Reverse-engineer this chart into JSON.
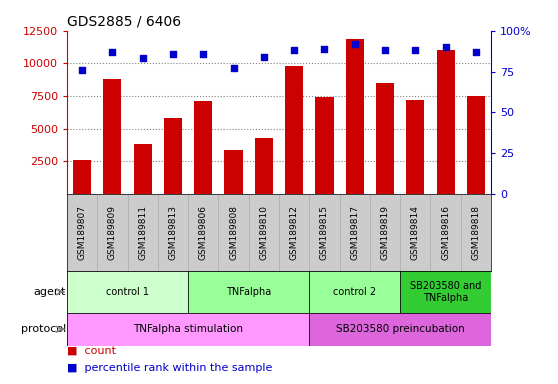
{
  "title": "GDS2885 / 6406",
  "samples": [
    "GSM189807",
    "GSM189809",
    "GSM189811",
    "GSM189813",
    "GSM189806",
    "GSM189808",
    "GSM189810",
    "GSM189812",
    "GSM189815",
    "GSM189817",
    "GSM189819",
    "GSM189814",
    "GSM189816",
    "GSM189818"
  ],
  "counts": [
    2600,
    8800,
    3800,
    5800,
    7100,
    3400,
    4300,
    9800,
    7400,
    11900,
    8500,
    7200,
    11000,
    7500
  ],
  "percentile_ranks": [
    76,
    87,
    83,
    86,
    86,
    77,
    84,
    88,
    89,
    92,
    88,
    88,
    90,
    87
  ],
  "bar_color": "#cc0000",
  "dot_color": "#0000cc",
  "ylim_left": [
    0,
    12500
  ],
  "ylim_right": [
    0,
    100
  ],
  "yticks_left": [
    2500,
    5000,
    7500,
    10000,
    12500
  ],
  "yticks_right": [
    0,
    25,
    50,
    75,
    100
  ],
  "dotted_lines": [
    10000,
    7500,
    5000,
    2500
  ],
  "agent_groups": [
    {
      "label": "control 1",
      "start": 0,
      "end": 4,
      "color": "#ccffcc"
    },
    {
      "label": "TNFalpha",
      "start": 4,
      "end": 8,
      "color": "#99ff99"
    },
    {
      "label": "control 2",
      "start": 8,
      "end": 11,
      "color": "#99ff99"
    },
    {
      "label": "SB203580 and\nTNFalpha",
      "start": 11,
      "end": 14,
      "color": "#33cc33"
    }
  ],
  "protocol_groups": [
    {
      "label": "TNFalpha stimulation",
      "start": 0,
      "end": 8,
      "color": "#ff99ff"
    },
    {
      "label": "SB203580 preincubation",
      "start": 8,
      "end": 14,
      "color": "#dd66dd"
    }
  ],
  "tick_color_left": "#cc0000",
  "tick_color_right": "#0000cc",
  "xtick_bg_color": "#cccccc",
  "legend_count_color": "#cc0000",
  "legend_pct_color": "#0000cc"
}
